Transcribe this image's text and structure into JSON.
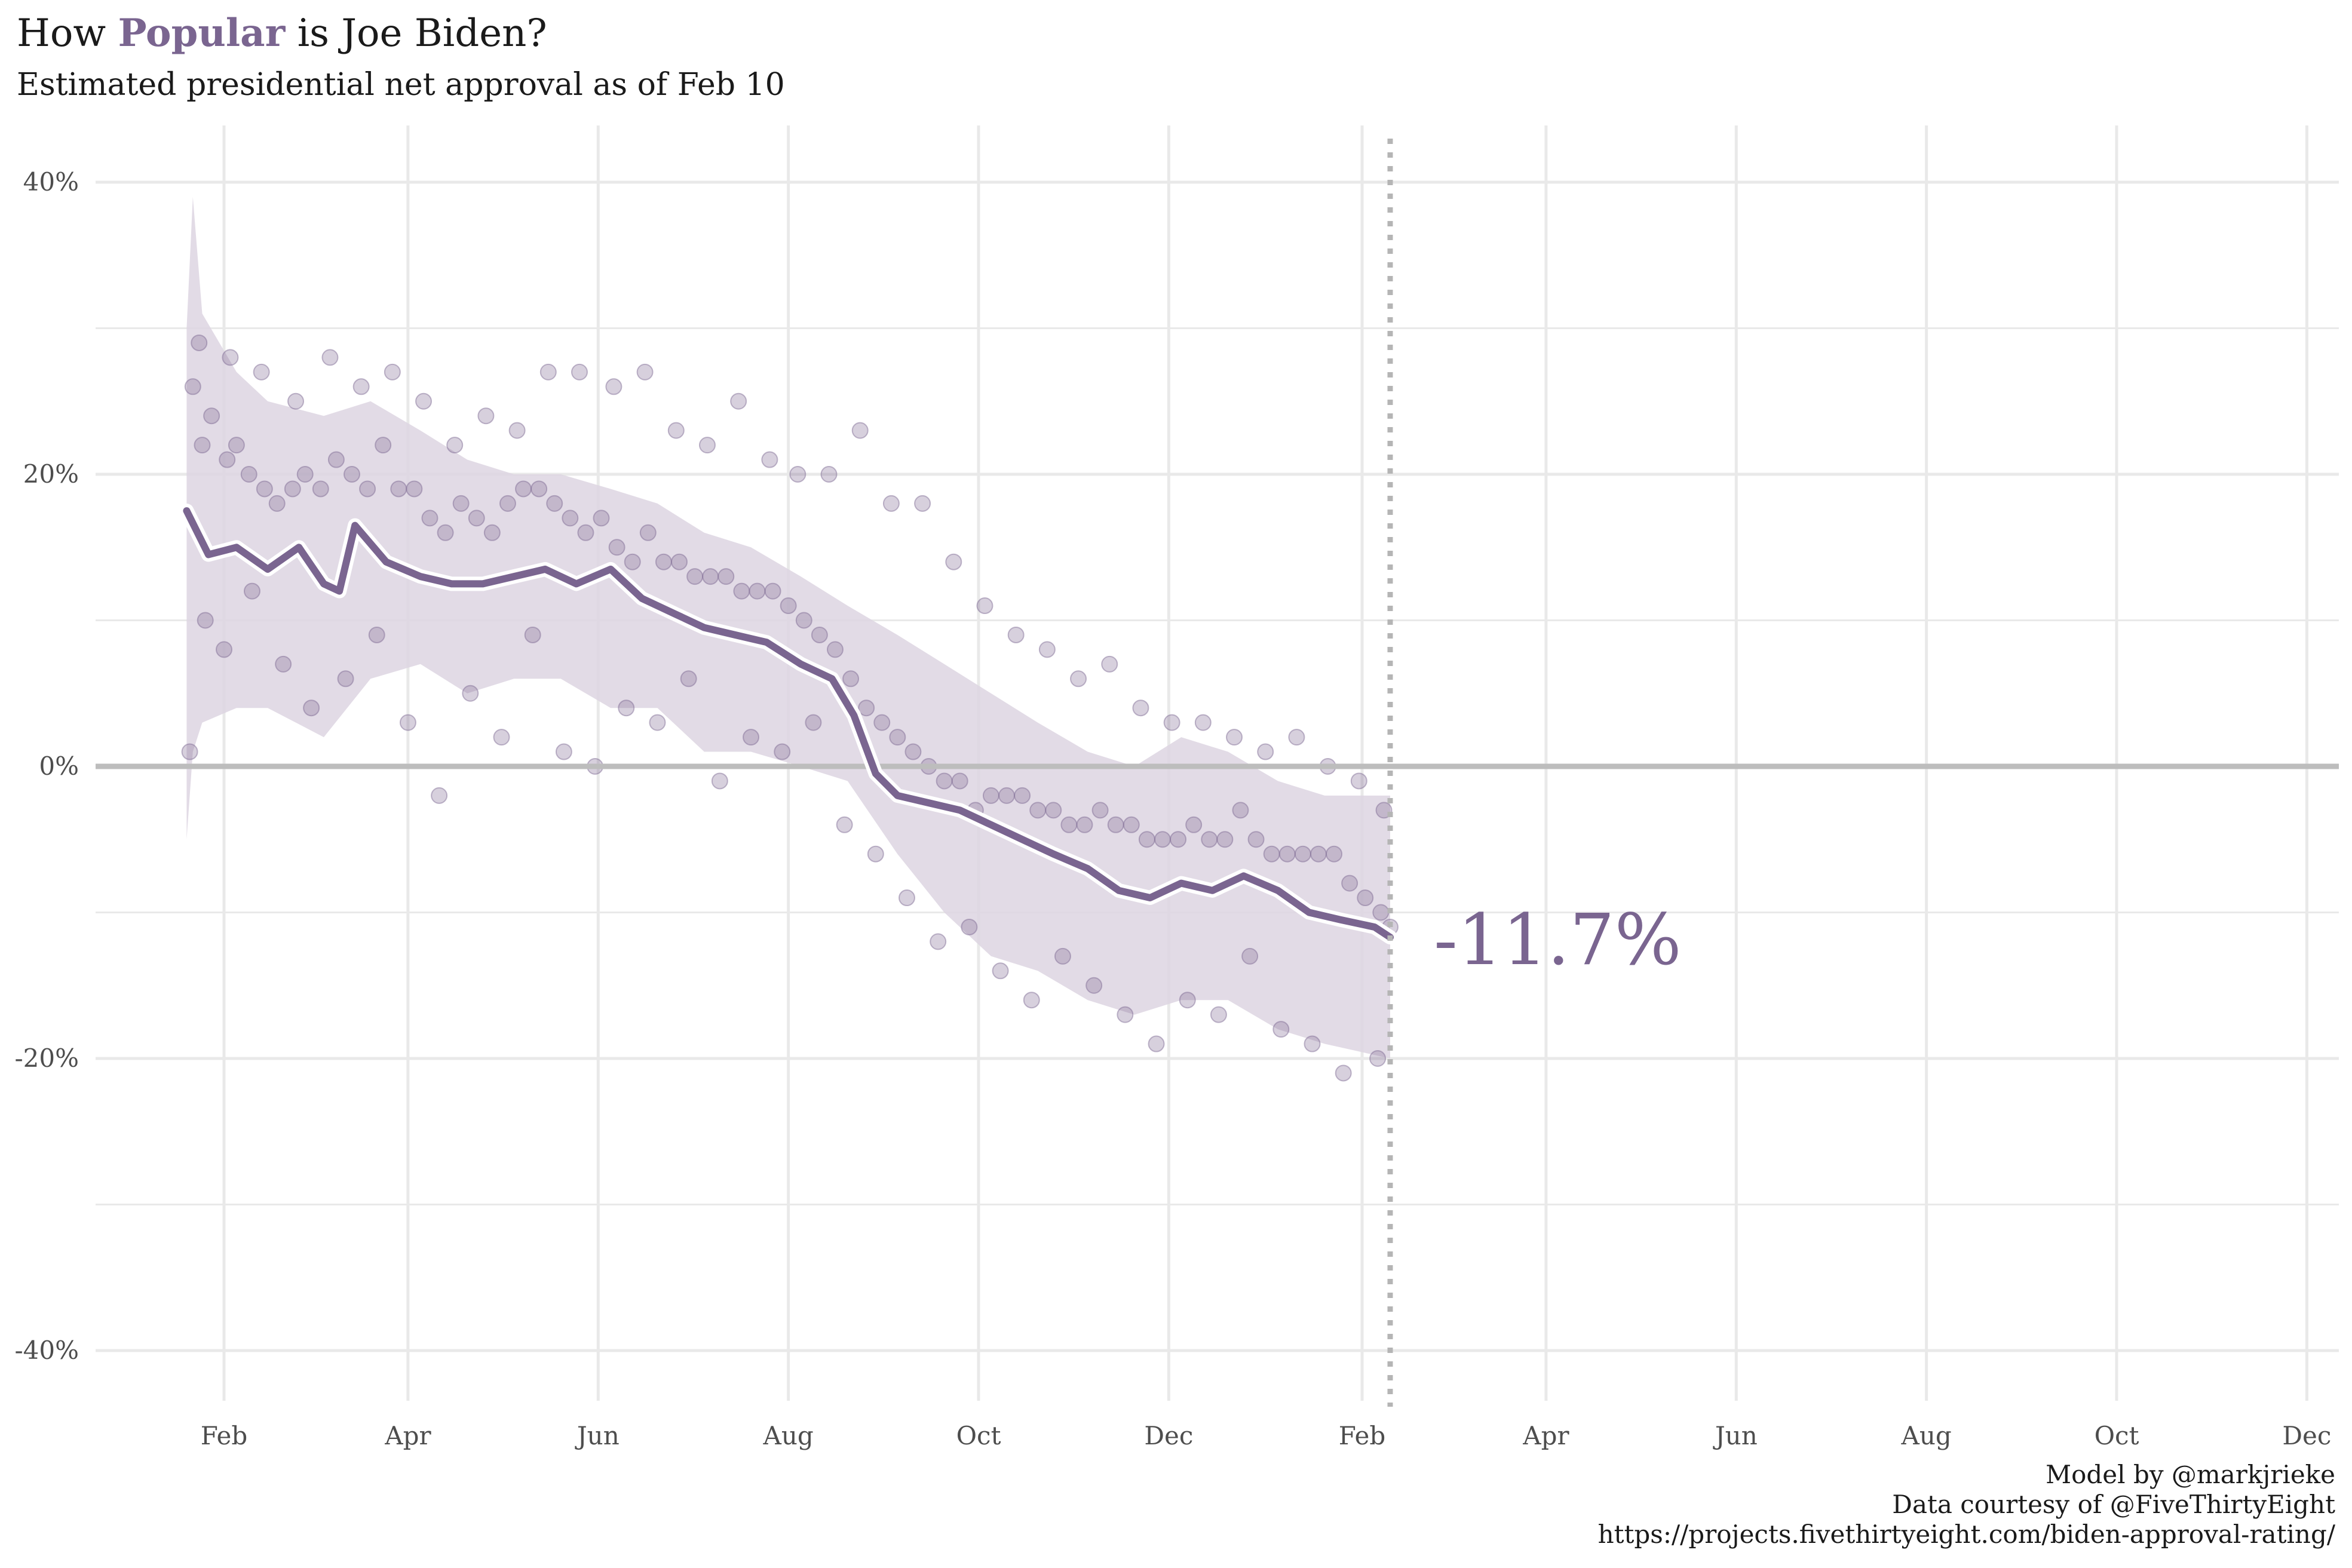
{
  "title": {
    "prefix": "How ",
    "accent": "Popular",
    "suffix": " is Joe Biden?"
  },
  "subtitle": "Estimated presidential net approval as of Feb 10",
  "caption": [
    "Model by @markjrieke",
    "Data courtesy of @FiveThirtyEight",
    "https://projects.fivethirtyeight.com/biden-approval-rating/"
  ],
  "colors": {
    "accent": "#7a6590",
    "band": "#ddd5e2",
    "grid": "#e9e9e9",
    "zero": "#bdbdbd",
    "today": "#b5b5b5"
  },
  "chart_data": {
    "type": "line",
    "title": "How Popular is Joe Biden?",
    "subtitle": "Estimated presidential net approval as of Feb 10",
    "xlabel": "",
    "ylabel": "",
    "ylim": [
      -40,
      40
    ],
    "yticks": [
      40,
      20,
      0,
      -20,
      -40
    ],
    "ytick_labels": [
      "40%",
      "20%",
      "0%",
      "-20%",
      "-40%"
    ],
    "xlim": [
      "2021-01-01",
      "2022-12-31"
    ],
    "xticks": [
      "2021-02-01",
      "2021-04-01",
      "2021-06-01",
      "2021-08-01",
      "2021-10-01",
      "2021-12-01",
      "2022-02-01",
      "2022-04-01",
      "2022-06-01",
      "2022-08-01",
      "2022-10-01",
      "2022-12-01"
    ],
    "xtick_labels": [
      "Feb",
      "Apr",
      "Jun",
      "Aug",
      "Oct",
      "Dec",
      "Feb",
      "Apr",
      "Jun",
      "Aug",
      "Oct",
      "Dec"
    ],
    "today": "2022-02-10",
    "current_value": "-11.7%",
    "grid": true,
    "legend": "none",
    "series": [
      {
        "type": "line",
        "x": [
          "2021-01-20",
          "2021-01-27",
          "2021-02-05",
          "2021-02-15",
          "2021-02-25",
          "2021-03-05",
          "2021-03-10",
          "2021-03-15",
          "2021-03-25",
          "2021-04-05",
          "2021-04-15",
          "2021-04-25",
          "2021-05-05",
          "2021-05-15",
          "2021-05-25",
          "2021-06-05",
          "2021-06-15",
          "2021-06-25",
          "2021-07-05",
          "2021-07-15",
          "2021-07-25",
          "2021-08-05",
          "2021-08-15",
          "2021-08-22",
          "2021-08-29",
          "2021-09-05",
          "2021-09-15",
          "2021-09-25",
          "2021-10-05",
          "2021-10-15",
          "2021-10-25",
          "2021-11-05",
          "2021-11-15",
          "2021-11-25",
          "2021-12-05",
          "2021-12-15",
          "2021-12-25",
          "2022-01-05",
          "2022-01-15",
          "2022-01-25",
          "2022-02-05",
          "2022-02-10"
        ],
        "values": [
          17.5,
          14.5,
          15.0,
          13.5,
          15.0,
          12.5,
          12.0,
          16.5,
          14.0,
          13.0,
          12.5,
          12.5,
          13.0,
          13.5,
          12.5,
          13.5,
          11.5,
          10.5,
          9.5,
          9.0,
          8.5,
          7.0,
          6.0,
          3.5,
          -0.5,
          -2.0,
          -2.5,
          -3.0,
          -4.0,
          -5.0,
          -6.0,
          -7.0,
          -8.5,
          -9.0,
          -8.0,
          -8.5,
          -7.5,
          -8.5,
          -10.0,
          -10.5,
          -11.0,
          -11.7
        ]
      },
      {
        "type": "band",
        "x": [
          "2021-01-20",
          "2021-01-22",
          "2021-01-25",
          "2021-02-05",
          "2021-02-15",
          "2021-03-05",
          "2021-03-20",
          "2021-04-05",
          "2021-04-20",
          "2021-05-05",
          "2021-05-20",
          "2021-06-05",
          "2021-06-20",
          "2021-07-05",
          "2021-07-20",
          "2021-08-05",
          "2021-08-20",
          "2021-09-05",
          "2021-09-20",
          "2021-10-05",
          "2021-10-20",
          "2021-11-05",
          "2021-11-20",
          "2021-12-05",
          "2021-12-20",
          "2022-01-05",
          "2022-01-20",
          "2022-02-10"
        ],
        "upper": [
          30,
          39,
          31,
          27,
          25,
          24,
          25,
          23,
          21,
          20,
          20,
          19,
          18,
          16,
          15,
          13,
          11,
          9,
          7,
          5,
          3,
          1,
          0,
          2,
          1,
          -1,
          -2,
          -2
        ],
        "lower": [
          -5,
          1,
          3,
          4,
          4,
          2,
          6,
          7,
          5,
          6,
          6,
          4,
          4,
          1,
          1,
          0,
          -1,
          -6,
          -10,
          -13,
          -14,
          -16,
          -17,
          -16,
          -16,
          -18,
          -19,
          -20
        ]
      },
      {
        "type": "scatter",
        "x": [
          "2021-01-22",
          "2021-01-25",
          "2021-01-28",
          "2021-02-02",
          "2021-02-05",
          "2021-02-09",
          "2021-02-14",
          "2021-02-18",
          "2021-02-23",
          "2021-02-27",
          "2021-03-04",
          "2021-03-09",
          "2021-03-14",
          "2021-03-19",
          "2021-03-24",
          "2021-03-29",
          "2021-04-03",
          "2021-04-08",
          "2021-04-13",
          "2021-04-18",
          "2021-04-23",
          "2021-04-28",
          "2021-05-03",
          "2021-05-08",
          "2021-05-13",
          "2021-05-18",
          "2021-05-23",
          "2021-05-28",
          "2021-06-02",
          "2021-06-07",
          "2021-06-12",
          "2021-06-17",
          "2021-06-22",
          "2021-06-27",
          "2021-07-02",
          "2021-07-07",
          "2021-07-12",
          "2021-07-17",
          "2021-07-22",
          "2021-07-27",
          "2021-08-01",
          "2021-08-06",
          "2021-08-11",
          "2021-08-16",
          "2021-08-21",
          "2021-08-26",
          "2021-08-31",
          "2021-09-05",
          "2021-09-10",
          "2021-09-15",
          "2021-09-20",
          "2021-09-25",
          "2021-09-30",
          "2021-10-05",
          "2021-10-10",
          "2021-10-15",
          "2021-10-20",
          "2021-10-25",
          "2021-10-30",
          "2021-11-04",
          "2021-11-09",
          "2021-11-14",
          "2021-11-19",
          "2021-11-24",
          "2021-11-29",
          "2021-12-04",
          "2021-12-09",
          "2021-12-14",
          "2021-12-19",
          "2021-12-24",
          "2021-12-29",
          "2022-01-03",
          "2022-01-08",
          "2022-01-13",
          "2022-01-18",
          "2022-01-23",
          "2022-01-28",
          "2022-02-02",
          "2022-02-07",
          "2022-02-10",
          "2021-01-21",
          "2021-01-26",
          "2021-02-01",
          "2021-02-10",
          "2021-02-20",
          "2021-03-01",
          "2021-03-12",
          "2021-03-22",
          "2021-04-01",
          "2021-04-11",
          "2021-04-21",
          "2021-05-01",
          "2021-05-11",
          "2021-05-21",
          "2021-05-31",
          "2021-06-10",
          "2021-06-20",
          "2021-06-30",
          "2021-07-10",
          "2021-07-20",
          "2021-07-30",
          "2021-08-09",
          "2021-08-19",
          "2021-08-29",
          "2021-09-08",
          "2021-09-18",
          "2021-09-28",
          "2021-10-08",
          "2021-10-18",
          "2021-10-28",
          "2021-11-07",
          "2021-11-17",
          "2021-11-27",
          "2021-12-07",
          "2021-12-17",
          "2021-12-27",
          "2022-01-06",
          "2022-01-16",
          "2022-01-26",
          "2022-02-06",
          "2021-01-24",
          "2021-02-03",
          "2021-02-13",
          "2021-02-24",
          "2021-03-07",
          "2021-03-17",
          "2021-03-27",
          "2021-04-06",
          "2021-04-16",
          "2021-04-26",
          "2021-05-06",
          "2021-05-16",
          "2021-05-26",
          "2021-06-06",
          "2021-06-16",
          "2021-06-26",
          "2021-07-06",
          "2021-07-16",
          "2021-07-26",
          "2021-08-04",
          "2021-08-14",
          "2021-08-24",
          "2021-09-03",
          "2021-09-13",
          "2021-09-23",
          "2021-10-03",
          "2021-10-13",
          "2021-10-23",
          "2021-11-02",
          "2021-11-12",
          "2021-11-22",
          "2021-12-02",
          "2021-12-12",
          "2021-12-22",
          "2022-01-01",
          "2022-01-11",
          "2022-01-21",
          "2022-01-31",
          "2022-02-08"
        ],
        "values": [
          26,
          22,
          24,
          21,
          22,
          20,
          19,
          18,
          19,
          20,
          19,
          21,
          20,
          19,
          22,
          19,
          19,
          17,
          16,
          18,
          17,
          16,
          18,
          19,
          19,
          18,
          17,
          16,
          17,
          15,
          14,
          16,
          14,
          14,
          13,
          13,
          13,
          12,
          12,
          12,
          11,
          10,
          9,
          8,
          6,
          4,
          3,
          2,
          1,
          0,
          -1,
          -1,
          -3,
          -2,
          -2,
          -2,
          -3,
          -3,
          -4,
          -4,
          -3,
          -4,
          -4,
          -5,
          -5,
          -5,
          -4,
          -5,
          -5,
          -3,
          -5,
          -6,
          -6,
          -6,
          -6,
          -6,
          -8,
          -9,
          -10,
          -11,
          1,
          10,
          8,
          12,
          7,
          4,
          6,
          9,
          3,
          -2,
          5,
          2,
          9,
          1,
          0,
          4,
          3,
          6,
          -1,
          2,
          1,
          3,
          -4,
          -6,
          -9,
          -12,
          -11,
          -14,
          -16,
          -13,
          -15,
          -17,
          -19,
          -16,
          -17,
          -13,
          -18,
          -19,
          -21,
          -20,
          29,
          28,
          27,
          25,
          28,
          26,
          27,
          25,
          22,
          24,
          23,
          27,
          27,
          26,
          27,
          23,
          22,
          25,
          21,
          20,
          20,
          23,
          18,
          18,
          14,
          11,
          9,
          8,
          6,
          7,
          4,
          3,
          3,
          2,
          1,
          2,
          0,
          -1,
          -3
        ]
      }
    ]
  }
}
